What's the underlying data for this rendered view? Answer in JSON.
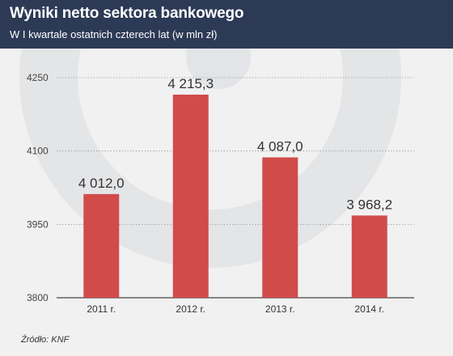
{
  "title": "Wyniki netto sektora bankowego",
  "subtitle": "W I kwartale ostatnich czterech lat (w mln zł)",
  "source": "Źródło: KNF",
  "colors": {
    "header": "#2c3a55",
    "bar": "#d24b4b",
    "watermark": "#d9dadf"
  },
  "watermark_icon": "ring-logo-watermark",
  "chart_data": {
    "type": "bar",
    "categories": [
      "2011 r.",
      "2012 r.",
      "2013 r.",
      "2014 r."
    ],
    "values": [
      4012.0,
      4215.3,
      4087.0,
      3968.2
    ],
    "value_labels": [
      "4 012,0",
      "4 215,3",
      "4 087,0",
      "3 968,2"
    ],
    "ylim": [
      3800,
      4250
    ],
    "yticks": [
      3800,
      3950,
      4100,
      4250
    ],
    "ytick_labels": [
      "3800",
      "3950",
      "4100",
      "4250"
    ],
    "grid": true
  }
}
